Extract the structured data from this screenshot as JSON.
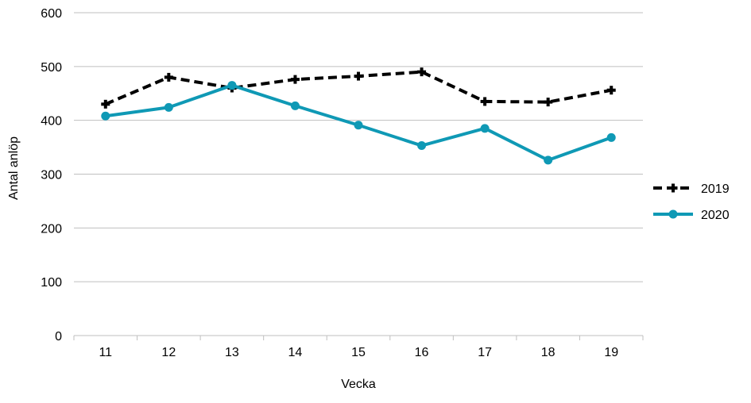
{
  "chart_data": {
    "type": "line",
    "title": "",
    "xlabel": "Vecka",
    "ylabel": "Antal anlöp",
    "categories": [
      "11",
      "12",
      "13",
      "14",
      "15",
      "16",
      "17",
      "18",
      "19"
    ],
    "ylim": [
      0,
      600
    ],
    "yticks": [
      0,
      100,
      200,
      300,
      400,
      500,
      600
    ],
    "grid": true,
    "legend_position": "right",
    "series": [
      {
        "name": "2019",
        "values": [
          430,
          480,
          460,
          476,
          482,
          490,
          435,
          434,
          456
        ],
        "color": "#000000",
        "line_style": "dashed",
        "marker": "plus"
      },
      {
        "name": "2020",
        "values": [
          408,
          424,
          465,
          427,
          391,
          353,
          385,
          326,
          368
        ],
        "color": "#0f99b5",
        "line_style": "solid",
        "marker": "circle"
      }
    ]
  }
}
